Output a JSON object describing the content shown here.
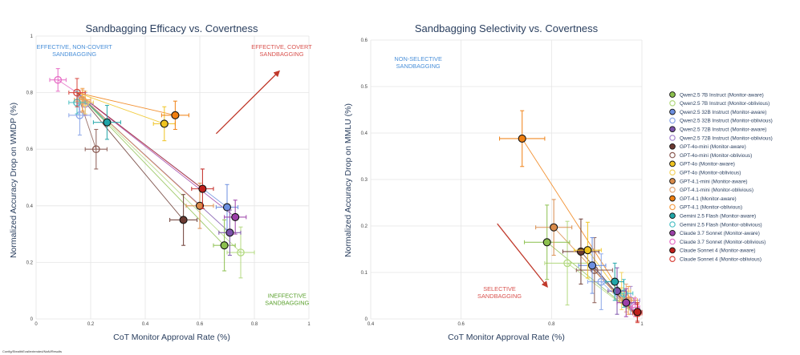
{
  "legend": [
    {
      "label": "Qwen2.5 7B Instruct (Monitor-aware)",
      "color": "#8cc04e",
      "filled": true
    },
    {
      "label": "Qwen2.5 7B Instruct (Monitor-oblivious)",
      "color": "#b3d980",
      "filled": false
    },
    {
      "label": "Qwen2.5 32B Instruct (Monitor-aware)",
      "color": "#6c8fe0",
      "filled": true
    },
    {
      "label": "Qwen2.5 32B Instruct (Monitor-oblivious)",
      "color": "#8aa6e8",
      "filled": false
    },
    {
      "label": "Qwen2.5 72B Instruct (Monitor-aware)",
      "color": "#7b52ab",
      "filled": true
    },
    {
      "label": "Qwen2.5 72B Instruct (Monitor-oblivious)",
      "color": "#a383cc",
      "filled": false
    },
    {
      "label": "GPT-4o-mini (Monitor-aware)",
      "color": "#6b3a32",
      "filled": true
    },
    {
      "label": "GPT-4o-mini (Monitor-oblivious)",
      "color": "#8a5a52",
      "filled": false
    },
    {
      "label": "GPT-4o (Monitor-aware)",
      "color": "#f0c420",
      "filled": true
    },
    {
      "label": "GPT-4o (Monitor-oblivious)",
      "color": "#f3d260",
      "filled": false
    },
    {
      "label": "GPT-4.1-mini (Monitor-aware)",
      "color": "#d98b4a",
      "filled": true
    },
    {
      "label": "GPT-4.1-mini (Monitor-oblivious)",
      "color": "#e3a878",
      "filled": false
    },
    {
      "label": "GPT-4.1 (Monitor-aware)",
      "color": "#f07f10",
      "filled": true
    },
    {
      "label": "GPT-4.1 (Monitor-oblivious)",
      "color": "#f4a04a",
      "filled": false
    },
    {
      "label": "Gemini 2.5 Flash (Monitor-aware)",
      "color": "#1fa5a8",
      "filled": true
    },
    {
      "label": "Gemini 2.5 Flash (Monitor-oblivious)",
      "color": "#4ac0c4",
      "filled": false
    },
    {
      "label": "Claude 3.7 Sonnet (Monitor-aware)",
      "color": "#9b3fa7",
      "filled": true
    },
    {
      "label": "Claude 3.7 Sonnet (Monitor-oblivious)",
      "color": "#e66bc5",
      "filled": false
    },
    {
      "label": "Claude Sonnet 4 (Monitor-aware)",
      "color": "#c0201c",
      "filled": true
    },
    {
      "label": "Claude Sonnet 4 (Monitor-oblivious)",
      "color": "#d8453c",
      "filled": false
    }
  ],
  "chart_data": [
    {
      "type": "scatter",
      "title": "Sandbagging Efficacy vs. Covertness",
      "xlabel": "CoT Monitor Approval Rate (%)",
      "ylabel": "Normalized Accuracy Drop on WMDP (%)",
      "xlim": [
        0,
        1
      ],
      "ylim": [
        0,
        1
      ],
      "x_ticks": [
        "0",
        "0.2",
        "0.4",
        "0.6",
        "0.8",
        "1"
      ],
      "y_ticks": [
        "0",
        "0.2",
        "0.4",
        "0.6",
        "0.8",
        "1"
      ],
      "x_tick_values": [
        0,
        0.2,
        0.4,
        0.6,
        0.8,
        1
      ],
      "y_tick_values": [
        0,
        0.2,
        0.4,
        0.6,
        0.8,
        1
      ],
      "baseline": [
        0.15,
        0.8
      ],
      "points": [
        {
          "series": 0,
          "x": 0.69,
          "y": 0.26,
          "xerr": 0.04,
          "yerr": 0.09
        },
        {
          "series": 1,
          "x": 0.75,
          "y": 0.235,
          "xerr": 0.05,
          "yerr": 0.09
        },
        {
          "series": 2,
          "x": 0.7,
          "y": 0.395,
          "xerr": 0.04,
          "yerr": 0.08
        },
        {
          "series": 3,
          "x": 0.16,
          "y": 0.72,
          "xerr": 0.04,
          "yerr": 0.07
        },
        {
          "series": 4,
          "x": 0.71,
          "y": 0.305,
          "xerr": 0.04,
          "yerr": 0.08
        },
        {
          "series": 5,
          "x": 0.18,
          "y": 0.76,
          "xerr": 0.03,
          "yerr": 0.04
        },
        {
          "series": 6,
          "x": 0.54,
          "y": 0.35,
          "xerr": 0.05,
          "yerr": 0.09
        },
        {
          "series": 7,
          "x": 0.22,
          "y": 0.6,
          "xerr": 0.04,
          "yerr": 0.07
        },
        {
          "series": 8,
          "x": 0.47,
          "y": 0.69,
          "xerr": 0.04,
          "yerr": 0.06
        },
        {
          "series": 9,
          "x": 0.18,
          "y": 0.765,
          "xerr": 0.03,
          "yerr": 0.04
        },
        {
          "series": 10,
          "x": 0.6,
          "y": 0.4,
          "xerr": 0.05,
          "yerr": 0.08
        },
        {
          "series": 11,
          "x": 0.17,
          "y": 0.77,
          "xerr": 0.03,
          "yerr": 0.04
        },
        {
          "series": 12,
          "x": 0.51,
          "y": 0.72,
          "xerr": 0.05,
          "yerr": 0.05
        },
        {
          "series": 13,
          "x": 0.17,
          "y": 0.775,
          "xerr": 0.03,
          "yerr": 0.04
        },
        {
          "series": 14,
          "x": 0.26,
          "y": 0.695,
          "xerr": 0.05,
          "yerr": 0.06
        },
        {
          "series": 15,
          "x": 0.15,
          "y": 0.765,
          "xerr": 0.03,
          "yerr": 0.04
        },
        {
          "series": 16,
          "x": 0.73,
          "y": 0.36,
          "xerr": 0.04,
          "yerr": 0.06
        },
        {
          "series": 17,
          "x": 0.08,
          "y": 0.845,
          "xerr": 0.03,
          "yerr": 0.04
        },
        {
          "series": 18,
          "x": 0.61,
          "y": 0.46,
          "xerr": 0.04,
          "yerr": 0.07
        },
        {
          "series": 19,
          "x": 0.15,
          "y": 0.8,
          "xerr": 0.03,
          "yerr": 0.05
        }
      ],
      "annotations": [
        {
          "text": [
            "EFFECTIVE, NON-COVERT",
            "SANDBAGGING"
          ],
          "x": 0.14,
          "y": 0.955,
          "color": "#4a90d9"
        },
        {
          "text": [
            "EFFECTIVE, COVERT",
            "SANDBAGGING"
          ],
          "x": 0.9,
          "y": 0.955,
          "color": "#d9534f"
        },
        {
          "text": [
            "INEFFECTIVE",
            "SANDBAGGING"
          ],
          "x": 0.92,
          "y": 0.075,
          "color": "#5aa02c"
        }
      ],
      "arrow": {
        "from": [
          0.66,
          0.655
        ],
        "to": [
          0.89,
          0.875
        ],
        "color": "#c0392b"
      }
    },
    {
      "type": "scatter",
      "title": "Sandbagging Selectivity vs. Covertness",
      "xlabel": "CoT Monitor Approval Rate (%)",
      "ylabel": "Normalized Accuracy Drop on MMLU (%)",
      "xlim": [
        0.4,
        1
      ],
      "ylim": [
        0,
        0.6
      ],
      "x_ticks": [
        "0.4",
        "0.6",
        "0.8",
        "1"
      ],
      "y_ticks": [
        "0",
        "0.1",
        "0.2",
        "0.3",
        "0.4",
        "0.5",
        "0.6"
      ],
      "x_tick_values": [
        0.4,
        0.6,
        0.8,
        1
      ],
      "y_tick_values": [
        0,
        0.1,
        0.2,
        0.3,
        0.4,
        0.5,
        0.6
      ],
      "baseline": [
        0.985,
        0.01
      ],
      "points": [
        {
          "series": 0,
          "x": 0.79,
          "y": 0.165,
          "xerr": 0.05,
          "yerr": 0.08
        },
        {
          "series": 1,
          "x": 0.835,
          "y": 0.12,
          "xerr": 0.05,
          "yerr": 0.09
        },
        {
          "series": 2,
          "x": 0.89,
          "y": 0.115,
          "xerr": 0.03,
          "yerr": 0.06
        },
        {
          "series": 3,
          "x": 0.91,
          "y": 0.08,
          "xerr": 0.03,
          "yerr": 0.06
        },
        {
          "series": 4,
          "x": 0.945,
          "y": 0.06,
          "xerr": 0.02,
          "yerr": 0.05
        },
        {
          "series": 5,
          "x": 0.975,
          "y": 0.04,
          "xerr": 0.02,
          "yerr": 0.03
        },
        {
          "series": 6,
          "x": 0.865,
          "y": 0.145,
          "xerr": 0.04,
          "yerr": 0.07
        },
        {
          "series": 7,
          "x": 0.895,
          "y": 0.105,
          "xerr": 0.04,
          "yerr": 0.07
        },
        {
          "series": 8,
          "x": 0.88,
          "y": 0.148,
          "xerr": 0.03,
          "yerr": 0.06
        },
        {
          "series": 9,
          "x": 0.955,
          "y": 0.06,
          "xerr": 0.02,
          "yerr": 0.04
        },
        {
          "series": 10,
          "x": 0.805,
          "y": 0.197,
          "xerr": 0.04,
          "yerr": 0.06
        },
        {
          "series": 11,
          "x": 0.965,
          "y": 0.045,
          "xerr": 0.02,
          "yerr": 0.03
        },
        {
          "series": 12,
          "x": 0.735,
          "y": 0.388,
          "xerr": 0.05,
          "yerr": 0.06
        },
        {
          "series": 13,
          "x": 0.97,
          "y": 0.04,
          "xerr": 0.02,
          "yerr": 0.03
        },
        {
          "series": 14,
          "x": 0.94,
          "y": 0.08,
          "xerr": 0.02,
          "yerr": 0.04
        },
        {
          "series": 15,
          "x": 0.96,
          "y": 0.055,
          "xerr": 0.02,
          "yerr": 0.03
        },
        {
          "series": 16,
          "x": 0.965,
          "y": 0.035,
          "xerr": 0.02,
          "yerr": 0.03
        },
        {
          "series": 17,
          "x": 0.985,
          "y": 0.025,
          "xerr": 0.01,
          "yerr": 0.02
        },
        {
          "series": 18,
          "x": 0.99,
          "y": 0.015,
          "xerr": 0.01,
          "yerr": 0.02
        },
        {
          "series": 19,
          "x": 0.99,
          "y": 0.012,
          "xerr": 0.01,
          "yerr": 0.02
        }
      ],
      "annotations": [
        {
          "text": [
            "NON-SELECTIVE",
            "SANDBAGGING"
          ],
          "x": 0.505,
          "y": 0.555,
          "color": "#4a90d9"
        },
        {
          "text": [
            "SELECTIVE",
            "SANDBAGGING"
          ],
          "x": 0.685,
          "y": 0.06,
          "color": "#d9534f"
        }
      ],
      "arrow": {
        "from": [
          0.68,
          0.205
        ],
        "to": [
          0.79,
          0.07
        ],
        "color": "#c0392b"
      }
    }
  ],
  "footer": "Config/StealthEval/extended/NaN/Results"
}
